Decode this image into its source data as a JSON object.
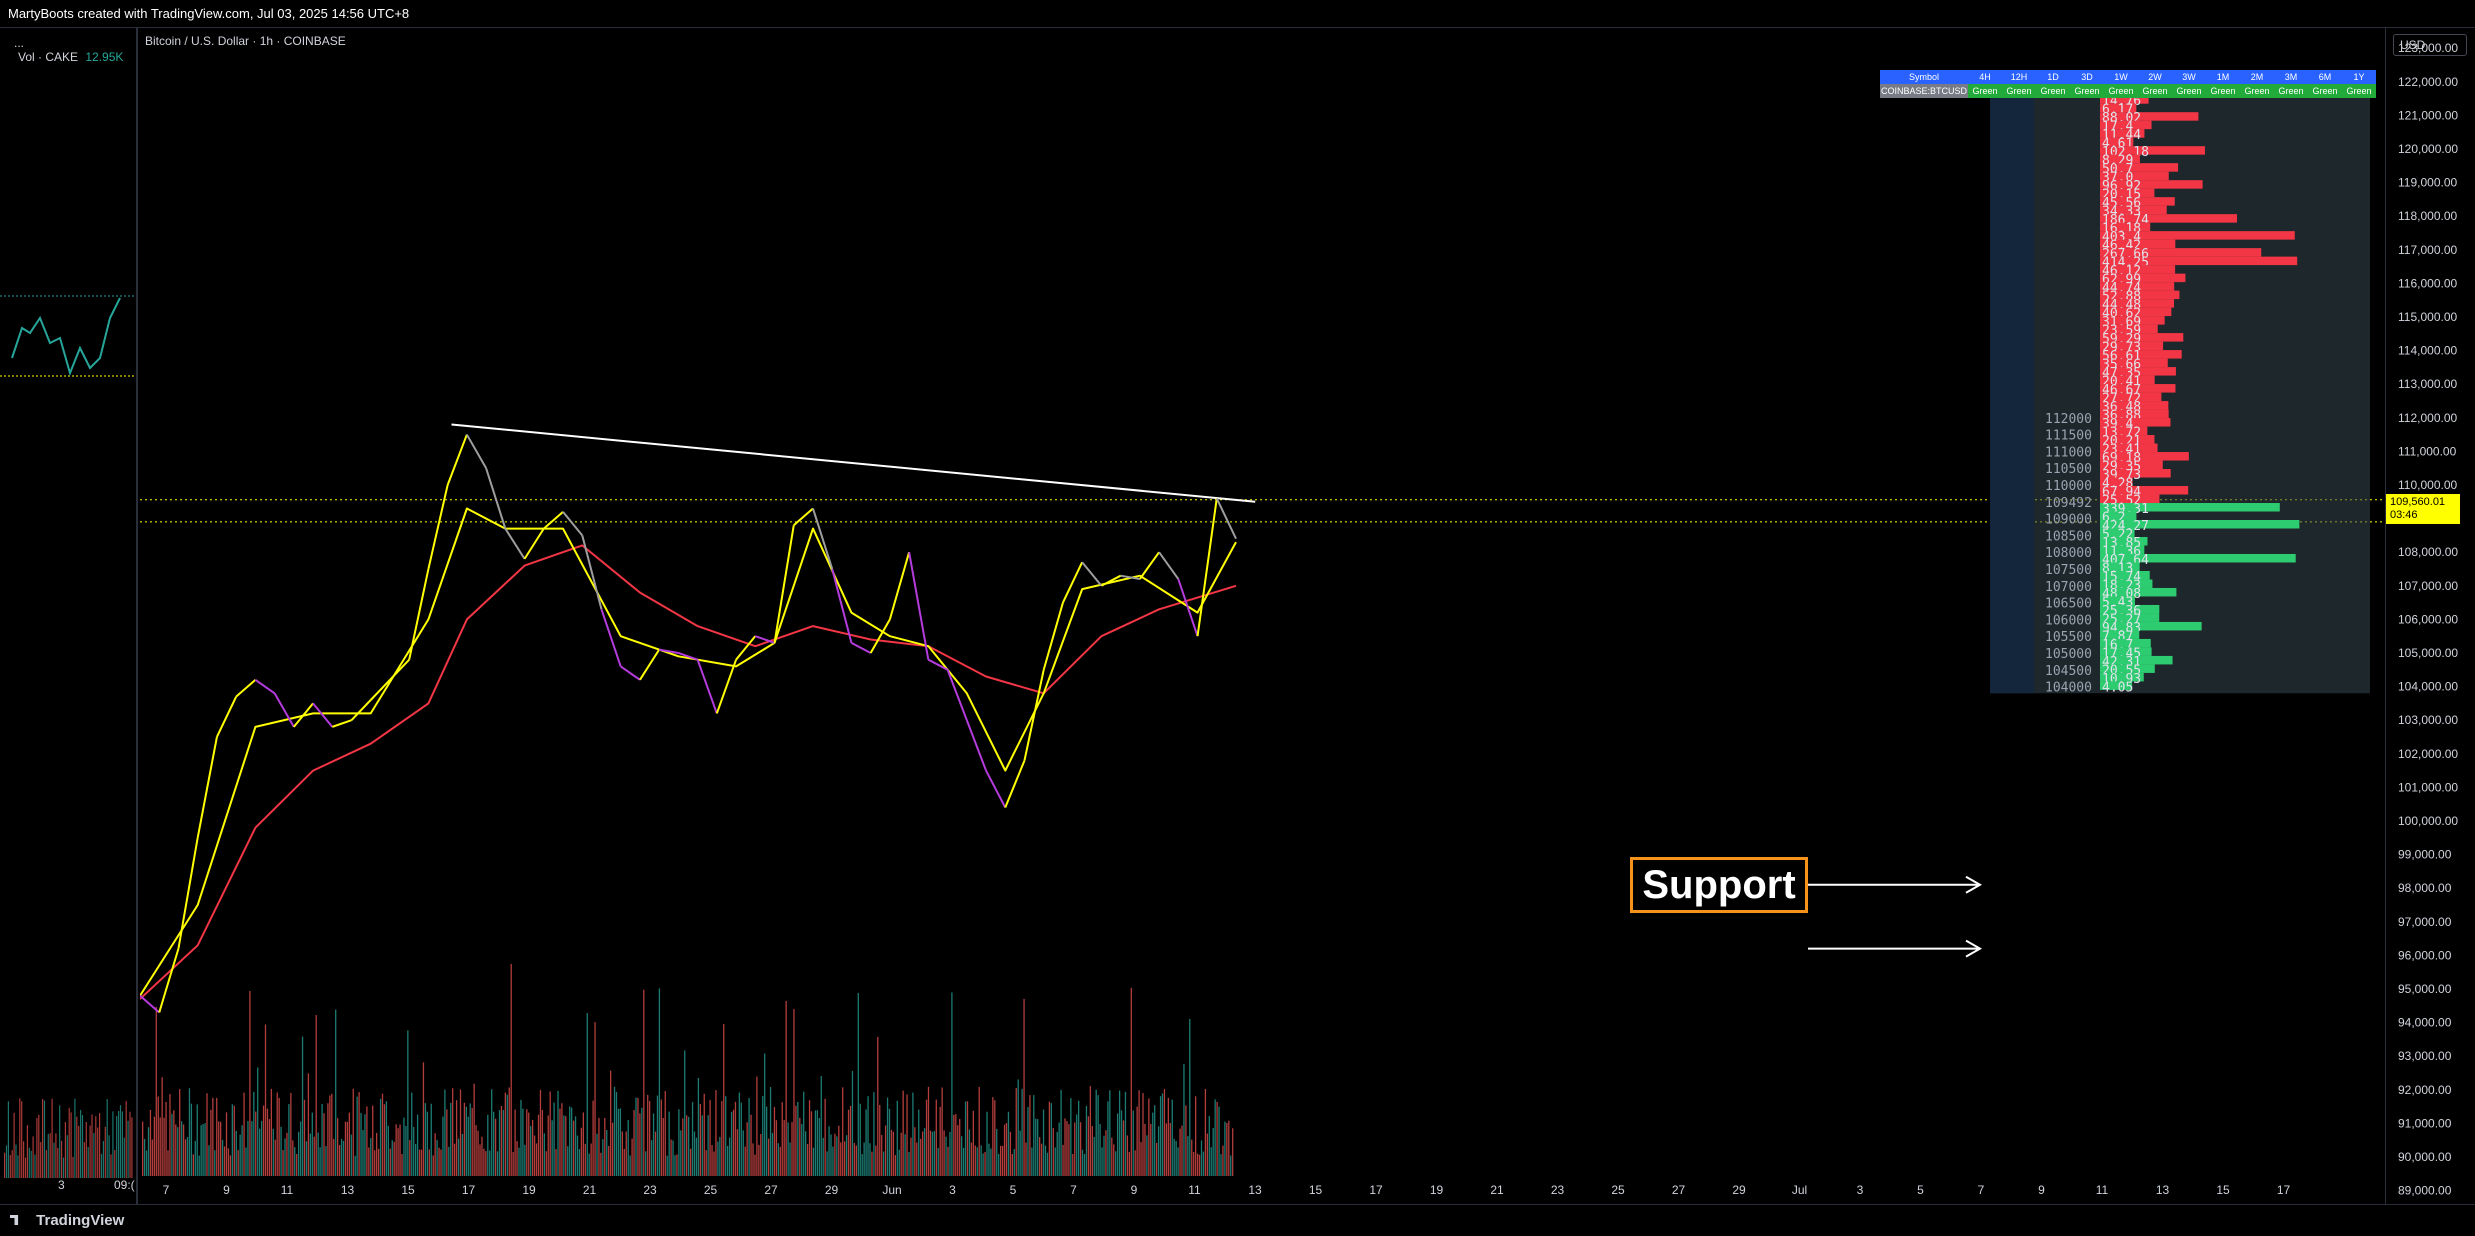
{
  "header": {
    "credit": "MartyBoots created with TradingView.com, Jul 03, 2025 14:56 UTC+8"
  },
  "left_pane": {
    "collapse_dots": "...",
    "volume_label": "Vol · CAKE",
    "volume_value": "12.95K",
    "x_ticks": [
      "3",
      "09:("
    ]
  },
  "symbol_title": "Bitcoin / U.S. Dollar · 1h · COINBASE",
  "currency": "USD",
  "status_table": {
    "headers": [
      "Symbol",
      "4H",
      "12H",
      "1D",
      "3D",
      "1W",
      "2W",
      "3W",
      "1M",
      "2M",
      "3M",
      "6M",
      "1Y"
    ],
    "row": [
      "COINBASE:BTCUSD",
      "Green",
      "Green",
      "Green",
      "Green",
      "Green",
      "Green",
      "Green",
      "Green",
      "Green",
      "Green",
      "Green",
      "Green"
    ]
  },
  "annotation": {
    "text": "Support"
  },
  "price_tag": {
    "price": "109,560.01",
    "countdown": "03:46"
  },
  "footer": {
    "brand": "TradingView"
  },
  "colors": {
    "background": "#000000",
    "ema_fast": "#ffff00",
    "ema_slow": "#f23645",
    "volume_up": "#26a69a",
    "volume_down": "#ef5350",
    "profile_sell": "#f23645",
    "profile_buy": "#2ecc71",
    "annotation_border": "#f7931a"
  },
  "chart_data": {
    "type": "line",
    "title": "Bitcoin / U.S. Dollar · 1h · COINBASE",
    "ylim": [
      88600,
      123600
    ],
    "y_ticks": [
      "123,000.00",
      "122,000.00",
      "121,000.00",
      "120,000.00",
      "119,000.00",
      "118,000.00",
      "117,000.00",
      "116,000.00",
      "115,000.00",
      "114,000.00",
      "113,000.00",
      "112,000.00",
      "111,000.00",
      "110,000.00",
      "109,000.00",
      "108,000.00",
      "107,000.00",
      "106,000.00",
      "105,000.00",
      "104,000.00",
      "103,000.00",
      "102,000.00",
      "101,000.00",
      "100,000.00",
      "99,000.00",
      "98,000.00",
      "97,000.00",
      "96,000.00",
      "95,000.00",
      "94,000.00",
      "93,000.00",
      "92,000.00",
      "91,000.00",
      "90,000.00",
      "89,000.00"
    ],
    "x_ticks": [
      "7",
      "9",
      "11",
      "13",
      "15",
      "17",
      "19",
      "21",
      "23",
      "25",
      "27",
      "29",
      "Jun",
      "3",
      "5",
      "7",
      "9",
      "11",
      "13",
      "15",
      "17",
      "19",
      "21",
      "23",
      "25",
      "27",
      "29",
      "Jul",
      "3",
      "5",
      "7",
      "9",
      "11",
      "13",
      "15",
      "17"
    ],
    "price_series": [
      [
        0,
        94800
      ],
      [
        1,
        94300
      ],
      [
        2,
        96200
      ],
      [
        3,
        99500
      ],
      [
        4,
        102500
      ],
      [
        5,
        103700
      ],
      [
        6,
        104200
      ],
      [
        7,
        103800
      ],
      [
        8,
        102800
      ],
      [
        9,
        103500
      ],
      [
        10,
        102800
      ],
      [
        11,
        103000
      ],
      [
        12,
        103600
      ],
      [
        13,
        104200
      ],
      [
        14,
        104800
      ],
      [
        15,
        107500
      ],
      [
        16,
        110000
      ],
      [
        17,
        111500
      ],
      [
        18,
        110500
      ],
      [
        19,
        108700
      ],
      [
        20,
        107800
      ],
      [
        21,
        108700
      ],
      [
        22,
        109200
      ],
      [
        23,
        108500
      ],
      [
        24,
        106300
      ],
      [
        25,
        104600
      ],
      [
        26,
        104200
      ],
      [
        27,
        105100
      ],
      [
        28,
        105000
      ],
      [
        29,
        104800
      ],
      [
        30,
        103200
      ],
      [
        31,
        104800
      ],
      [
        32,
        105500
      ],
      [
        33,
        105300
      ],
      [
        34,
        108800
      ],
      [
        35,
        109300
      ],
      [
        36,
        107500
      ],
      [
        37,
        105300
      ],
      [
        38,
        105000
      ],
      [
        39,
        106000
      ],
      [
        40,
        108000
      ],
      [
        41,
        104800
      ],
      [
        42,
        104500
      ],
      [
        43,
        103000
      ],
      [
        44,
        101500
      ],
      [
        45,
        100400
      ],
      [
        46,
        101800
      ],
      [
        47,
        104500
      ],
      [
        48,
        106500
      ],
      [
        49,
        107700
      ],
      [
        50,
        107000
      ],
      [
        51,
        107300
      ],
      [
        52,
        107200
      ],
      [
        53,
        108000
      ],
      [
        54,
        107200
      ],
      [
        55,
        105500
      ],
      [
        56,
        109600
      ],
      [
        57,
        108400
      ]
    ],
    "ema_fast_series": [
      [
        0,
        94800
      ],
      [
        3,
        97500
      ],
      [
        6,
        102800
      ],
      [
        9,
        103200
      ],
      [
        12,
        103200
      ],
      [
        15,
        106000
      ],
      [
        17,
        109300
      ],
      [
        19,
        108700
      ],
      [
        22,
        108700
      ],
      [
        25,
        105500
      ],
      [
        28,
        104900
      ],
      [
        31,
        104600
      ],
      [
        33,
        105300
      ],
      [
        35,
        108700
      ],
      [
        37,
        106200
      ],
      [
        39,
        105500
      ],
      [
        41,
        105200
      ],
      [
        43,
        103800
      ],
      [
        45,
        101500
      ],
      [
        47,
        103800
      ],
      [
        49,
        106900
      ],
      [
        52,
        107300
      ],
      [
        55,
        106200
      ],
      [
        57,
        108300
      ]
    ],
    "ema_slow_series": [
      [
        0,
        94700
      ],
      [
        3,
        96300
      ],
      [
        6,
        99800
      ],
      [
        9,
        101500
      ],
      [
        12,
        102300
      ],
      [
        15,
        103500
      ],
      [
        17,
        106000
      ],
      [
        20,
        107600
      ],
      [
        23,
        108200
      ],
      [
        26,
        106800
      ],
      [
        29,
        105800
      ],
      [
        32,
        105200
      ],
      [
        35,
        105800
      ],
      [
        38,
        105400
      ],
      [
        41,
        105200
      ],
      [
        44,
        104300
      ],
      [
        47,
        103800
      ],
      [
        50,
        105500
      ],
      [
        53,
        106300
      ],
      [
        57,
        107000
      ]
    ],
    "trendline": [
      [
        16.2,
        111800
      ],
      [
        58,
        109500
      ]
    ],
    "dotted_levels": [
      109560,
      108900
    ],
    "volume_profile": {
      "levels": [
        112000,
        111500,
        111000,
        110500,
        110000,
        109492,
        109000,
        108500,
        108000,
        107500,
        107000,
        106500,
        106000,
        105500,
        105000,
        104500,
        104000
      ],
      "values": [
        "14.76",
        "6.17",
        "88.02",
        "17.4",
        "11.44",
        "4.61",
        "102.18",
        "8.29",
        "50.7",
        "37.0",
        "96.92",
        "20.15",
        "45.56",
        "34.33",
        "186.74",
        "16.18",
        "403.4",
        "46.42",
        "267.66",
        "414.25",
        "46.12",
        "62.99",
        "44.74",
        "52.88",
        "44.48",
        "40.62",
        "31.69",
        "23.59",
        "59.29",
        "29.73",
        "56.61",
        "35.66",
        "47.35",
        "20.41",
        "46.67",
        "27.72",
        "36.48",
        "36.88",
        "39.4",
        "13.72",
        "20.21",
        "23.41",
        "69.18",
        "29.35",
        "39.73",
        "4.28",
        "67.94",
        "25.52",
        "339.31",
        "6.2",
        "424.27",
        "5.22",
        "13.85",
        "11.36",
        "407.64",
        "8.13",
        "15.74",
        "18.23",
        "48.08",
        "5.43",
        "25.36",
        "25.27",
        "94.83",
        "7.87",
        "16.7",
        "17.45",
        "42.31",
        "20.55",
        "10.93",
        "4.05"
      ]
    }
  }
}
